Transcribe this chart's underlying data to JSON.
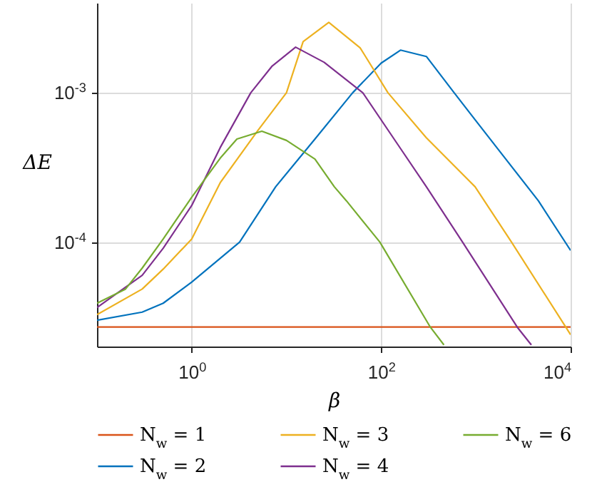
{
  "chart_data": {
    "type": "line",
    "xlabel": "β",
    "ylabel": "ΔE",
    "log": "xy",
    "grid": true,
    "legend": "bottom",
    "line_style": "solid",
    "xlim": [
      0.1,
      10000
    ],
    "ylim": [
      2e-05,
      0.004
    ],
    "xticks": [
      {
        "value": 1,
        "label": "10$^{0}$"
      },
      {
        "value": 100,
        "label": "10$^{2}$"
      },
      {
        "value": 10000,
        "label": "10$^{4}$"
      }
    ],
    "yticks": [
      {
        "value": 0.0001,
        "label": "10$^{-4}$"
      },
      {
        "value": 0.001,
        "label": "10$^{-3}$"
      }
    ],
    "series": [
      {
        "name": "N$_{w}$ = 1",
        "color": "#d95319",
        "x": [
          0.1,
          10000
        ],
        "values": [
          2.7e-05,
          2.7e-05
        ]
      },
      {
        "name": "N$_{w}$ = 2",
        "color": "#0072bd",
        "x": [
          0.1,
          0.3,
          0.5,
          1,
          3.2,
          7.7,
          20,
          50,
          100,
          160,
          300,
          590,
          1000,
          2000,
          4570,
          10000
        ],
        "values": [
          3e-05,
          3.4e-05,
          3.9e-05,
          5.4e-05,
          0.0001,
          0.000235,
          0.00049,
          0.001,
          0.00158,
          0.00193,
          0.00175,
          0.001,
          0.00065,
          0.00037,
          0.000189,
          8.8e-05
        ]
      },
      {
        "name": "N$_{w}$ = 3",
        "color": "#edb120",
        "x": [
          0.1,
          0.3,
          0.5,
          1,
          2,
          5,
          10,
          15,
          28,
          60,
          118,
          300,
          980,
          2380,
          10000
        ],
        "values": [
          3.27e-05,
          4.85e-05,
          6.6e-05,
          0.000105,
          0.00025,
          0.00056,
          0.001,
          0.0022,
          0.00296,
          0.002,
          0.001,
          0.0005,
          0.000235,
          0.0001,
          2.4e-05
        ]
      },
      {
        "name": "N$_{w}$ = 4",
        "color": "#7e2f8e",
        "x": [
          0.1,
          0.3,
          0.5,
          1,
          2,
          4.2,
          7,
          12.5,
          25,
          64,
          150,
          300,
          724,
          2730,
          3850
        ],
        "values": [
          3.65e-05,
          6e-05,
          9.1e-05,
          0.000176,
          0.00043,
          0.001,
          0.0015,
          0.00202,
          0.0016,
          0.001,
          0.00045,
          0.000235,
          0.0001,
          2.7e-05,
          2.05e-05
        ]
      },
      {
        "name": "N$_{w}$ = 6",
        "color": "#77ac30",
        "x": [
          0.1,
          0.2,
          0.3,
          0.5,
          1,
          2,
          3,
          5.5,
          10,
          20,
          32,
          43,
          97,
          330,
          460
        ],
        "values": [
          3.9e-05,
          4.85e-05,
          6.7e-05,
          0.000105,
          0.0002,
          0.000365,
          0.00049,
          0.000553,
          0.00048,
          0.00036,
          0.000235,
          0.000189,
          0.0001,
          2.7e-05,
          2.05e-05
        ]
      }
    ]
  }
}
